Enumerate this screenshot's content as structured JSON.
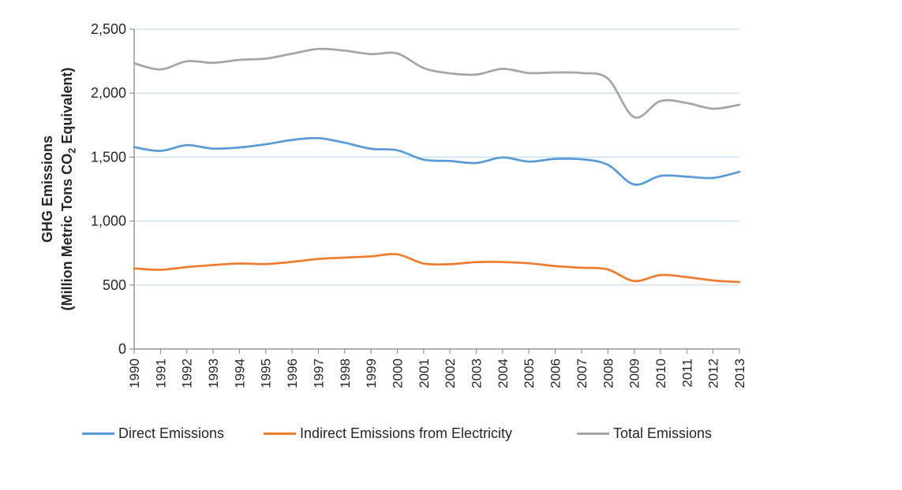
{
  "page": {
    "background_color": "#ffffff"
  },
  "chart_data": {
    "type": "line",
    "title": "",
    "xlabel": "",
    "ylabel": "GHG Emissions (Million Metric Tons CO2 Equivalent)",
    "grid": true,
    "smooth_lines": true,
    "legend_position": "bottom",
    "y_axis": {
      "label_line1": "GHG Emissions",
      "label_line2_pre": "(Million Metric Tons CO",
      "label_line2_sub": "2",
      "label_line2_post": " Equivalent)",
      "min": 0,
      "max": 2500,
      "tick_interval": 500,
      "tick_labels": [
        "0",
        "500",
        "1,000",
        "1,500",
        "2,000",
        "2,500"
      ]
    },
    "x_axis": {
      "categories": [
        "1990",
        "1991",
        "1992",
        "1993",
        "1994",
        "1995",
        "1996",
        "1997",
        "1998",
        "1999",
        "2000",
        "2001",
        "2002",
        "2003",
        "2004",
        "2005",
        "2006",
        "2007",
        "2008",
        "2009",
        "2010",
        "2011",
        "2012",
        "2013"
      ]
    },
    "series": [
      {
        "name": "Direct Emissions",
        "color": "#5B9BD5",
        "values": [
          1578,
          1548,
          1593,
          1566,
          1575,
          1600,
          1634,
          1648,
          1612,
          1565,
          1553,
          1480,
          1469,
          1454,
          1497,
          1465,
          1486,
          1483,
          1440,
          1286,
          1353,
          1347,
          1337,
          1385
        ]
      },
      {
        "name": "Indirect Emissions from Electricity",
        "color": "#ED7D31",
        "values": [
          630,
          619,
          640,
          656,
          668,
          664,
          681,
          704,
          714,
          724,
          740,
          668,
          663,
          679,
          680,
          670,
          648,
          635,
          622,
          531,
          578,
          562,
          536,
          523
        ]
      },
      {
        "name": "Total Emissions",
        "color": "#A5A5A5",
        "values": [
          2233,
          2185,
          2249,
          2237,
          2260,
          2270,
          2308,
          2345,
          2332,
          2305,
          2310,
          2196,
          2155,
          2145,
          2190,
          2157,
          2161,
          2157,
          2113,
          1812,
          1938,
          1923,
          1878,
          1909
        ]
      }
    ],
    "style": {
      "gridline_color": "#BDD7EE",
      "axis_color": "#808080",
      "text_color": "#262626",
      "line_width": 2.75
    }
  }
}
